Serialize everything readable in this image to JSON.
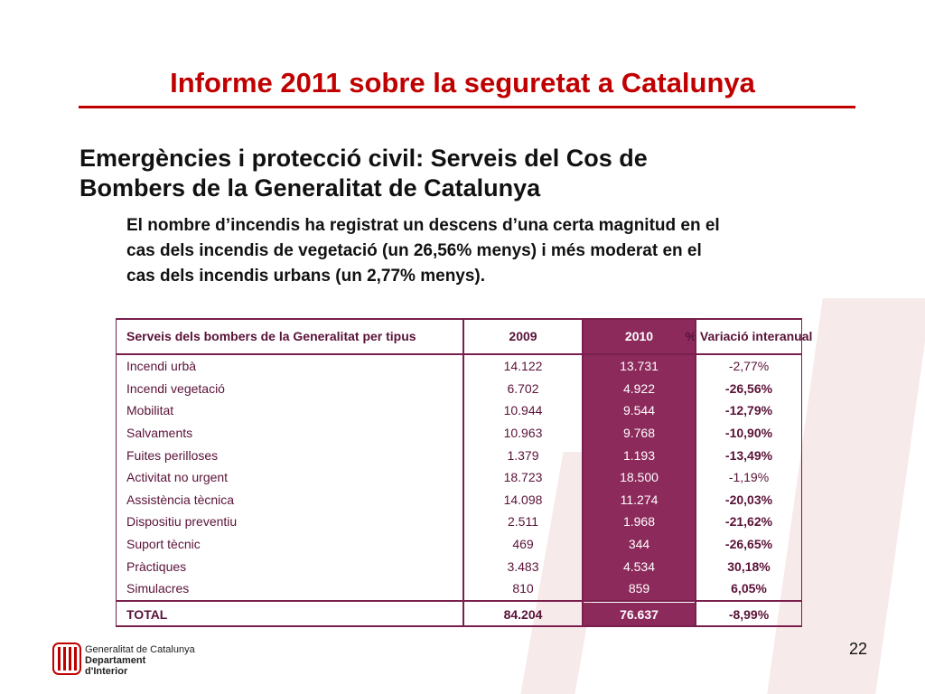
{
  "header": {
    "title": "Informe 2011 sobre la seguretat a Catalunya"
  },
  "subtitle": [
    "Emergències i protecció civil: Serveis del Cos de",
    "Bombers de la Generalitat de Catalunya"
  ],
  "paragraph": [
    "El nombre d’incendis ha registrat un descens d’una certa magnitud en el",
    "cas dels incendis de vegetació (un 26,56% menys) i més moderat en el",
    "cas dels incendis urbans (un 2,77% menys)."
  ],
  "table": {
    "header": [
      "Serveis dels bombers de la Generalitat per tipus",
      "2009",
      "2010",
      "% Variació interanual"
    ],
    "rows": [
      [
        "Incendi urbà",
        "14.122",
        "13.731",
        "-2,77%"
      ],
      [
        "Incendi vegetació",
        "6.702",
        "4.922",
        "-26,56%"
      ],
      [
        "Mobilitat",
        "10.944",
        "9.544",
        "-12,79%"
      ],
      [
        "Salvaments",
        "10.963",
        "9.768",
        "-10,90%"
      ],
      [
        "Fuites perilloses",
        "1.379",
        "1.193",
        "-13,49%"
      ],
      [
        "Activitat no urgent",
        "18.723",
        "18.500",
        "-1,19%"
      ],
      [
        "Assistència tècnica",
        "14.098",
        "11.274",
        "-20,03%"
      ],
      [
        "Dispositiu preventiu",
        "2.511",
        "1.968",
        "-21,62%"
      ],
      [
        "Suport tècnic",
        "469",
        "344",
        "-26,65%"
      ],
      [
        "Pràctiques",
        "3.483",
        "4.534",
        "30,18%"
      ],
      [
        "Simulacres",
        "810",
        "859",
        "6,05%"
      ]
    ],
    "total": [
      "TOTAL",
      "84.204",
      "76.637",
      "-8,99%"
    ]
  },
  "footer": {
    "logo": [
      "Generalitat de Catalunya",
      "Departament",
      "d'Interior"
    ],
    "page": "22"
  }
}
